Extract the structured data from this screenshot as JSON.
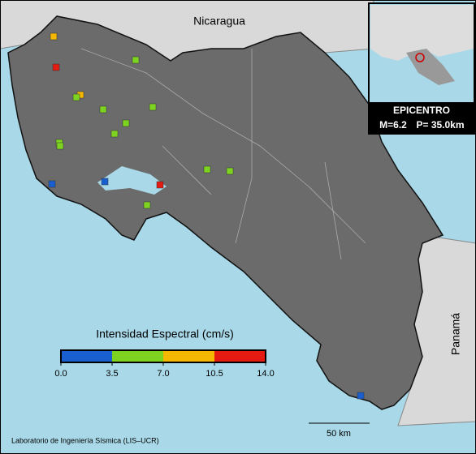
{
  "map": {
    "labels": {
      "north": "Nicaragua",
      "south": "Panamá"
    },
    "inset": {
      "title": "EPICENTRO",
      "magnitude": "M=6.2",
      "depth": "P= 35.0km"
    },
    "legend": {
      "title": "Intensidad Espectral (cm/s)",
      "ticks": [
        {
          "value": 0,
          "label": "0.0"
        },
        {
          "value": 3.5,
          "label": "3.5"
        },
        {
          "value": 7,
          "label": "7.0"
        },
        {
          "value": 10.5,
          "label": "10.5"
        },
        {
          "value": 14,
          "label": "14.0"
        }
      ],
      "colors": [
        "#1a5fd0",
        "#7ed321",
        "#f5b800",
        "#e51b12"
      ]
    },
    "scale_bar": "50 km",
    "credit": "Laboratorio de Ingeniería Sísmica (LIS–UCR)"
  },
  "stations": {
    "values": [
      9,
      12,
      5,
      9,
      5,
      5,
      5,
      5,
      5,
      5,
      5,
      2,
      2,
      12,
      5,
      5,
      5,
      2
    ]
  }
}
